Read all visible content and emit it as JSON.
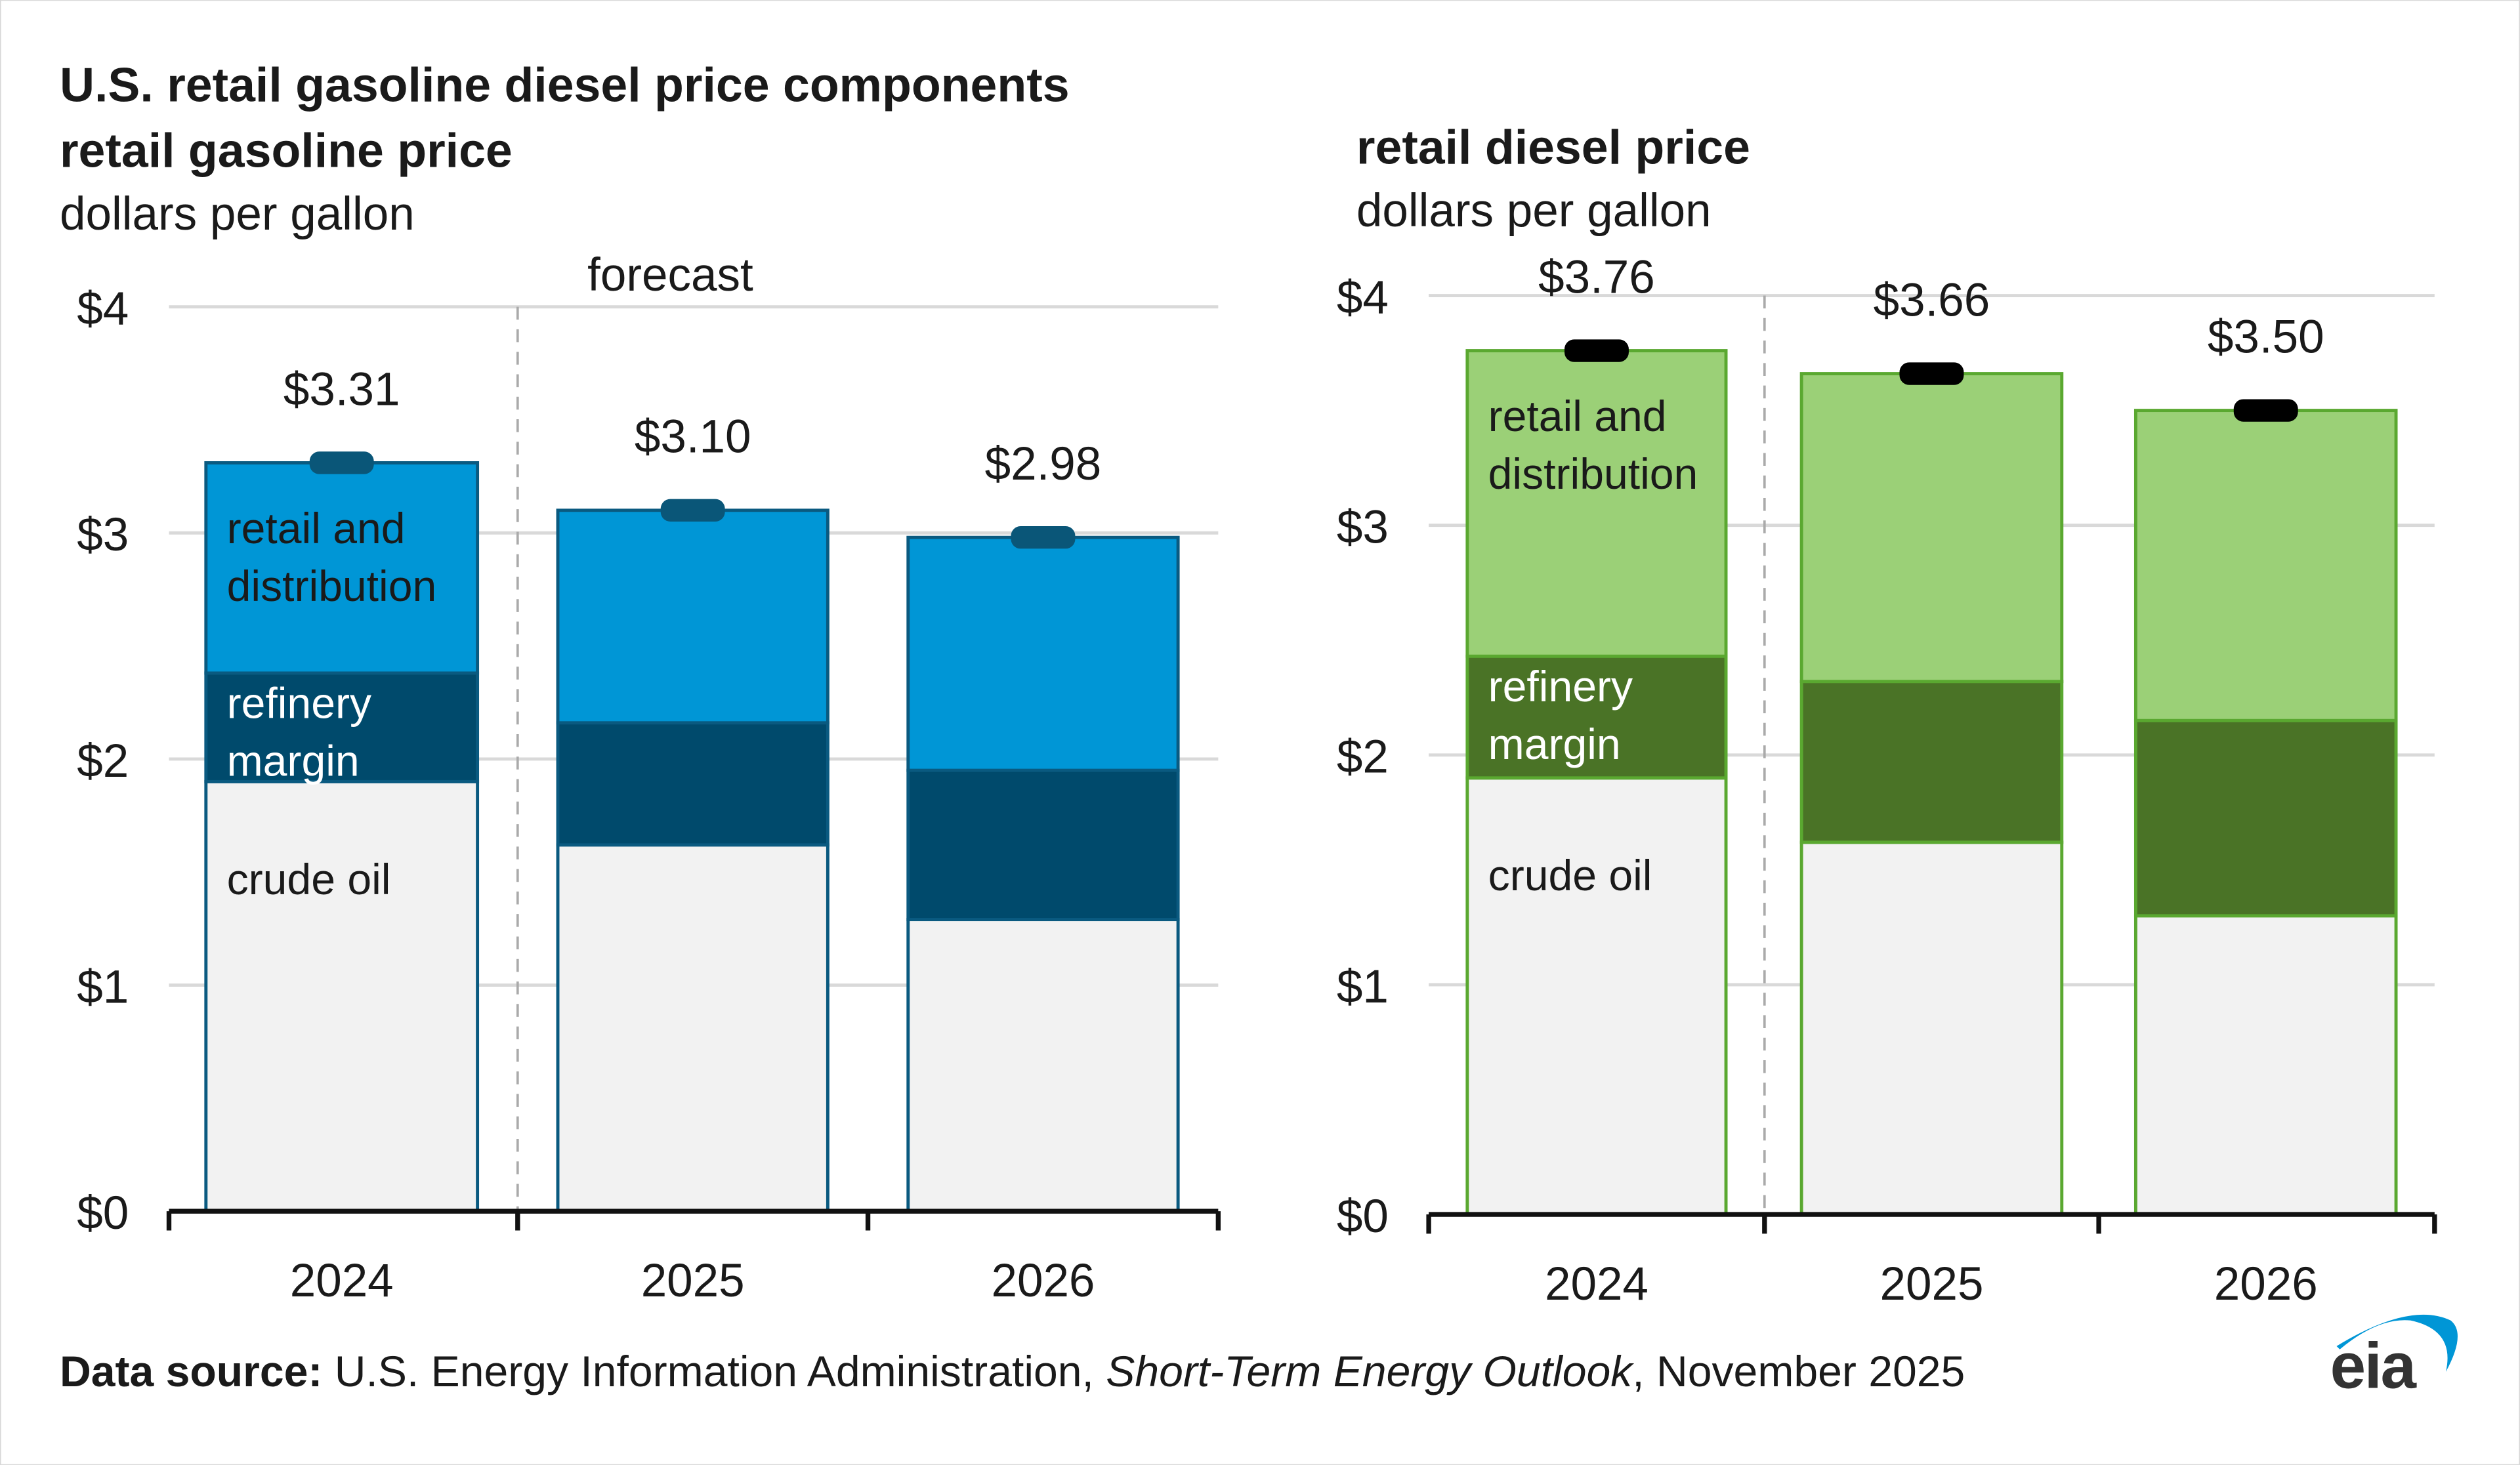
{
  "header": {
    "title": "U.S. retail gasoline diesel price components"
  },
  "footer": {
    "source_label": "Data source:",
    "source_text": " U.S. Energy Information Administration, ",
    "source_publication": "Short-Term Energy Outlook",
    "source_date": ", November 2025",
    "logo_text": "eia"
  },
  "chart_data": [
    {
      "type": "bar",
      "stacked": true,
      "title": "retail gasoline price",
      "ylabel": "dollars per gallon",
      "categories": [
        "2024",
        "2025",
        "2026"
      ],
      "ylim": [
        0,
        4
      ],
      "yticks": [
        "$0",
        "$1",
        "$2",
        "$3",
        "$4"
      ],
      "grid": true,
      "annotation": "forecast",
      "series": [
        {
          "name": "crude oil",
          "values": [
            1.9,
            1.62,
            1.29
          ],
          "color": "#F2F2F2",
          "label_color": "#1a1a1a"
        },
        {
          "name": "refinery margin",
          "values": [
            0.48,
            0.54,
            0.66
          ],
          "color": "#004A6C",
          "label_color": "#FFFFFF"
        },
        {
          "name": "retail and distribution",
          "values": [
            0.93,
            0.94,
            1.03
          ],
          "color": "#0096D6",
          "label_color": "#1a1a1a"
        }
      ],
      "totals": [
        3.31,
        3.1,
        2.98
      ],
      "total_labels": [
        "$3.31",
        "$3.10",
        "$2.98"
      ],
      "border_color": "#0A5A80",
      "marker_color": "#0A5678"
    },
    {
      "type": "bar",
      "stacked": true,
      "title": "retail diesel price",
      "ylabel": "dollars per gallon",
      "categories": [
        "2024",
        "2025",
        "2026"
      ],
      "ylim": [
        0,
        4
      ],
      "yticks": [
        "$0",
        "$1",
        "$2",
        "$3",
        "$4"
      ],
      "grid": true,
      "series": [
        {
          "name": "crude oil",
          "values": [
            1.9,
            1.62,
            1.3
          ],
          "color": "#F2F2F2",
          "label_color": "#1a1a1a"
        },
        {
          "name": "refinery margin",
          "values": [
            0.53,
            0.7,
            0.85
          ],
          "color": "#4A7326",
          "label_color": "#FFFFFF"
        },
        {
          "name": "retail and distribution",
          "values": [
            1.33,
            1.34,
            1.35
          ],
          "color": "#9BD077",
          "label_color": "#1a1a1a"
        }
      ],
      "totals": [
        3.76,
        3.66,
        3.5
      ],
      "total_labels": [
        "$3.76",
        "$3.66",
        "$3.50"
      ],
      "border_color": "#5AA830",
      "marker_color": "#000000"
    }
  ]
}
